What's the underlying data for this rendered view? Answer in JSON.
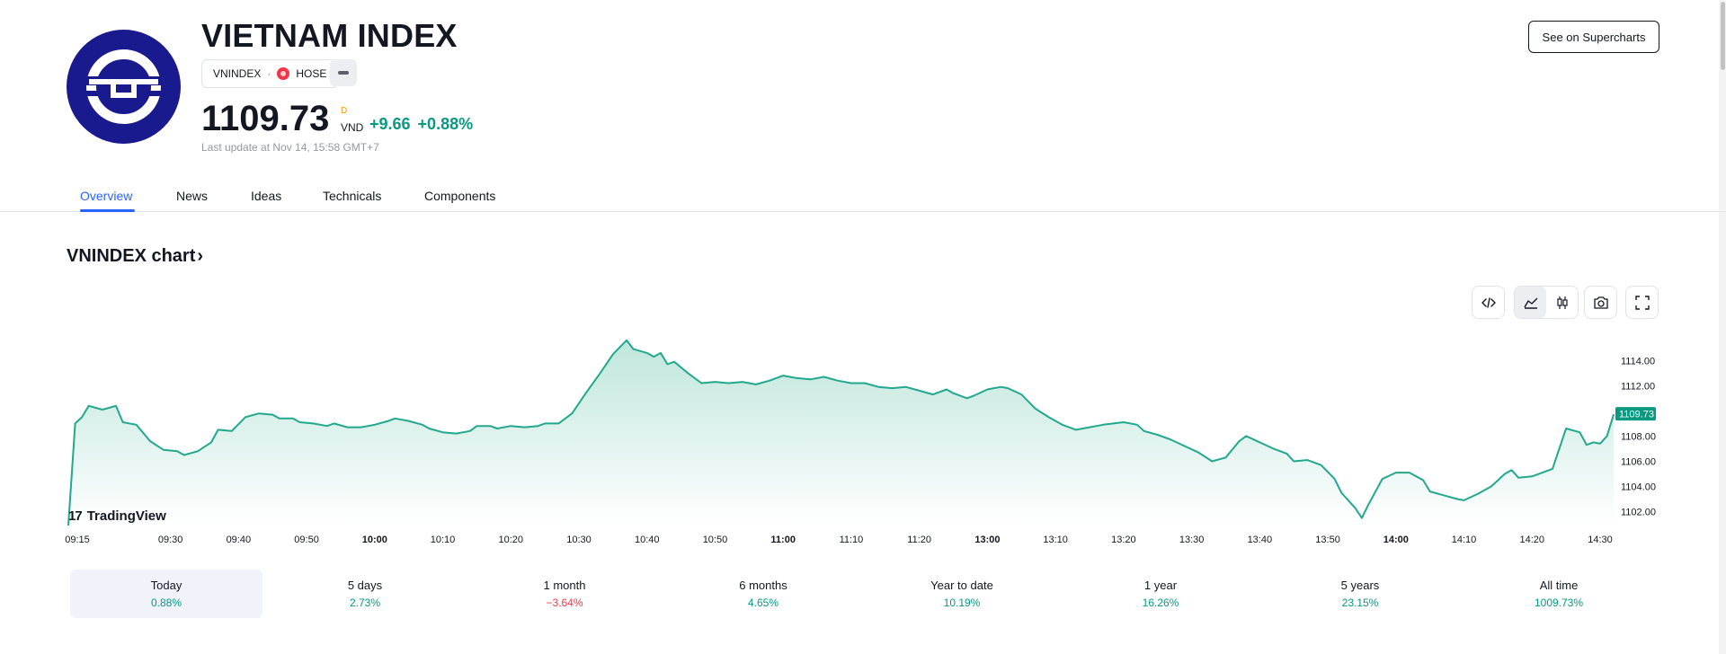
{
  "header": {
    "title": "VIETNAM INDEX",
    "symbol": "VNINDEX",
    "separator": "·",
    "exchange": "HOSE",
    "price": "1109.73",
    "price_flag": "D",
    "currency": "VND",
    "change_abs": "+9.66",
    "change_pct": "+0.88%",
    "last_update": "Last update at Nov 14, 15:58 GMT+7",
    "supercharts_label": "See on Supercharts"
  },
  "icons": {
    "logo": "vietnam-index-logo",
    "exchange": "hose-exchange-icon",
    "more": "more-icon",
    "embed": "embed-code-icon",
    "area": "area-chart-icon",
    "candles": "candlestick-icon",
    "snapshot": "camera-icon",
    "fullscreen": "fullscreen-icon",
    "brand": "tradingview-logo-icon"
  },
  "tabs": [
    {
      "label": "Overview",
      "active": true
    },
    {
      "label": "News",
      "active": false
    },
    {
      "label": "Ideas",
      "active": false
    },
    {
      "label": "Technicals",
      "active": false
    },
    {
      "label": "Components",
      "active": false
    }
  ],
  "chart": {
    "heading": "VNINDEX chart",
    "heading_chevron": "›",
    "brand": "TradingView",
    "brand_mark": "17"
  },
  "colors": {
    "line": "#22a88d",
    "fill_top": "#bfe6dc",
    "fill_bottom": "#ffffff",
    "positive": "#089981",
    "negative": "#f23645",
    "accent": "#2962ff",
    "logo_bg": "#1a1a8f"
  },
  "chart_data": {
    "type": "area",
    "current_value": 1109.73,
    "current_label": "1109.73",
    "y_ticks": [
      "1114.00",
      "1112.00",
      "1110.00",
      "1108.00",
      "1106.00",
      "1104.00",
      "1102.00"
    ],
    "y_tick_values": [
      1114,
      1112,
      1110,
      1108,
      1106,
      1104,
      1102
    ],
    "ylim": [
      1100.9,
      1116.8
    ],
    "x_ticks": [
      {
        "label": "09:15",
        "t": "09:15",
        "bold": false
      },
      {
        "label": "09:30",
        "t": "09:30",
        "bold": false
      },
      {
        "label": "09:40",
        "t": "09:40",
        "bold": false
      },
      {
        "label": "09:50",
        "t": "09:50",
        "bold": false
      },
      {
        "label": "10:00",
        "t": "10:00",
        "bold": true
      },
      {
        "label": "10:10",
        "t": "10:10",
        "bold": false
      },
      {
        "label": "10:20",
        "t": "10:20",
        "bold": false
      },
      {
        "label": "10:30",
        "t": "10:30",
        "bold": false
      },
      {
        "label": "10:40",
        "t": "10:40",
        "bold": false
      },
      {
        "label": "10:50",
        "t": "10:50",
        "bold": false
      },
      {
        "label": "11:00",
        "t": "11:00",
        "bold": true
      },
      {
        "label": "11:10",
        "t": "11:10",
        "bold": false
      },
      {
        "label": "11:20",
        "t": "11:20",
        "bold": false
      },
      {
        "label": "13:00",
        "t": "13:00",
        "bold": true
      },
      {
        "label": "13:10",
        "t": "13:10",
        "bold": false
      },
      {
        "label": "13:20",
        "t": "13:20",
        "bold": false
      },
      {
        "label": "13:30",
        "t": "13:30",
        "bold": false
      },
      {
        "label": "13:40",
        "t": "13:40",
        "bold": false
      },
      {
        "label": "13:50",
        "t": "13:50",
        "bold": false
      },
      {
        "label": "14:00",
        "t": "14:00",
        "bold": true
      },
      {
        "label": "14:10",
        "t": "14:10",
        "bold": false
      },
      {
        "label": "14:20",
        "t": "14:20",
        "bold": false
      },
      {
        "label": "14:30",
        "t": "14:30",
        "bold": false
      }
    ],
    "points": [
      [
        "09:15",
        1100.9
      ],
      [
        "09:16",
        1109.0
      ],
      [
        "09:17",
        1109.5
      ],
      [
        "09:18",
        1110.4
      ],
      [
        "09:20",
        1110.1
      ],
      [
        "09:22",
        1110.4
      ],
      [
        "09:23",
        1109.1
      ],
      [
        "09:25",
        1108.9
      ],
      [
        "09:27",
        1107.6
      ],
      [
        "09:29",
        1106.9
      ],
      [
        "09:31",
        1106.8
      ],
      [
        "09:32",
        1106.5
      ],
      [
        "09:34",
        1106.8
      ],
      [
        "09:36",
        1107.5
      ],
      [
        "09:37",
        1108.5
      ],
      [
        "09:39",
        1108.4
      ],
      [
        "09:41",
        1109.5
      ],
      [
        "09:43",
        1109.8
      ],
      [
        "09:45",
        1109.7
      ],
      [
        "09:46",
        1109.4
      ],
      [
        "09:48",
        1109.4
      ],
      [
        "09:49",
        1109.1
      ],
      [
        "09:51",
        1109.0
      ],
      [
        "09:53",
        1108.8
      ],
      [
        "09:54",
        1109.0
      ],
      [
        "09:56",
        1108.7
      ],
      [
        "09:58",
        1108.7
      ],
      [
        "10:00",
        1108.9
      ],
      [
        "10:02",
        1109.2
      ],
      [
        "10:03",
        1109.4
      ],
      [
        "10:05",
        1109.2
      ],
      [
        "10:07",
        1108.9
      ],
      [
        "10:08",
        1108.6
      ],
      [
        "10:10",
        1108.3
      ],
      [
        "10:12",
        1108.2
      ],
      [
        "10:14",
        1108.4
      ],
      [
        "10:15",
        1108.8
      ],
      [
        "10:17",
        1108.8
      ],
      [
        "10:18",
        1108.6
      ],
      [
        "10:20",
        1108.8
      ],
      [
        "10:22",
        1108.7
      ],
      [
        "10:24",
        1108.8
      ],
      [
        "10:25",
        1109.0
      ],
      [
        "10:27",
        1109.0
      ],
      [
        "10:29",
        1109.8
      ],
      [
        "10:31",
        1111.4
      ],
      [
        "10:33",
        1112.9
      ],
      [
        "10:35",
        1114.5
      ],
      [
        "10:37",
        1115.6
      ],
      [
        "10:38",
        1114.9
      ],
      [
        "10:40",
        1114.6
      ],
      [
        "10:41",
        1114.3
      ],
      [
        "10:42",
        1114.6
      ],
      [
        "10:43",
        1113.7
      ],
      [
        "10:44",
        1113.9
      ],
      [
        "10:46",
        1113.0
      ],
      [
        "10:48",
        1112.2
      ],
      [
        "10:50",
        1112.3
      ],
      [
        "10:52",
        1112.2
      ],
      [
        "10:54",
        1112.3
      ],
      [
        "10:56",
        1112.1
      ],
      [
        "10:58",
        1112.4
      ],
      [
        "11:00",
        1112.8
      ],
      [
        "11:02",
        1112.6
      ],
      [
        "11:04",
        1112.5
      ],
      [
        "11:06",
        1112.7
      ],
      [
        "11:08",
        1112.4
      ],
      [
        "11:10",
        1112.2
      ],
      [
        "11:12",
        1112.2
      ],
      [
        "11:14",
        1111.9
      ],
      [
        "11:16",
        1111.8
      ],
      [
        "11:18",
        1111.9
      ],
      [
        "11:20",
        1111.6
      ],
      [
        "11:22",
        1111.3
      ],
      [
        "11:24",
        1111.7
      ],
      [
        "11:25",
        1111.4
      ],
      [
        "11:27",
        1111.0
      ],
      [
        "11:28",
        1111.2
      ],
      [
        "13:00",
        1111.7
      ],
      [
        "13:02",
        1111.9
      ],
      [
        "13:03",
        1111.8
      ],
      [
        "13:05",
        1111.3
      ],
      [
        "13:07",
        1110.2
      ],
      [
        "13:09",
        1109.5
      ],
      [
        "13:11",
        1108.9
      ],
      [
        "13:13",
        1108.5
      ],
      [
        "13:15",
        1108.7
      ],
      [
        "13:17",
        1108.9
      ],
      [
        "13:20",
        1109.1
      ],
      [
        "13:22",
        1108.9
      ],
      [
        "13:23",
        1108.4
      ],
      [
        "13:25",
        1108.1
      ],
      [
        "13:27",
        1107.7
      ],
      [
        "13:29",
        1107.2
      ],
      [
        "13:31",
        1106.7
      ],
      [
        "13:33",
        1106.0
      ],
      [
        "13:35",
        1106.3
      ],
      [
        "13:37",
        1107.6
      ],
      [
        "13:38",
        1108.0
      ],
      [
        "13:40",
        1107.5
      ],
      [
        "13:42",
        1107.0
      ],
      [
        "13:44",
        1106.6
      ],
      [
        "13:45",
        1106.0
      ],
      [
        "13:47",
        1106.1
      ],
      [
        "13:49",
        1105.7
      ],
      [
        "13:51",
        1104.6
      ],
      [
        "13:52",
        1103.5
      ],
      [
        "13:54",
        1102.3
      ],
      [
        "13:55",
        1101.5
      ],
      [
        "13:56",
        1102.6
      ],
      [
        "13:58",
        1104.6
      ],
      [
        "14:00",
        1105.1
      ],
      [
        "14:02",
        1105.1
      ],
      [
        "14:04",
        1104.5
      ],
      [
        "14:05",
        1103.6
      ],
      [
        "14:07",
        1103.3
      ],
      [
        "14:09",
        1103.0
      ],
      [
        "14:10",
        1102.9
      ],
      [
        "14:12",
        1103.4
      ],
      [
        "14:14",
        1104.0
      ],
      [
        "14:16",
        1105.0
      ],
      [
        "14:17",
        1105.3
      ],
      [
        "14:18",
        1104.7
      ],
      [
        "14:20",
        1104.8
      ],
      [
        "14:22",
        1105.2
      ],
      [
        "14:23",
        1105.4
      ],
      [
        "14:25",
        1108.6
      ],
      [
        "14:27",
        1108.3
      ],
      [
        "14:28",
        1107.3
      ],
      [
        "14:29",
        1107.5
      ],
      [
        "14:30",
        1107.4
      ],
      [
        "14:31",
        1108.0
      ],
      [
        "14:32",
        1109.73
      ]
    ]
  },
  "periods": [
    {
      "label": "Today",
      "value": "0.88%",
      "direction": "pos",
      "active": true
    },
    {
      "label": "5 days",
      "value": "2.73%",
      "direction": "pos",
      "active": false
    },
    {
      "label": "1 month",
      "value": "−3.64%",
      "direction": "neg",
      "active": false
    },
    {
      "label": "6 months",
      "value": "4.65%",
      "direction": "pos",
      "active": false
    },
    {
      "label": "Year to date",
      "value": "10.19%",
      "direction": "pos",
      "active": false
    },
    {
      "label": "1 year",
      "value": "16.26%",
      "direction": "pos",
      "active": false
    },
    {
      "label": "5 years",
      "value": "23.15%",
      "direction": "pos",
      "active": false
    },
    {
      "label": "All time",
      "value": "1009.73%",
      "direction": "pos",
      "active": false
    }
  ]
}
